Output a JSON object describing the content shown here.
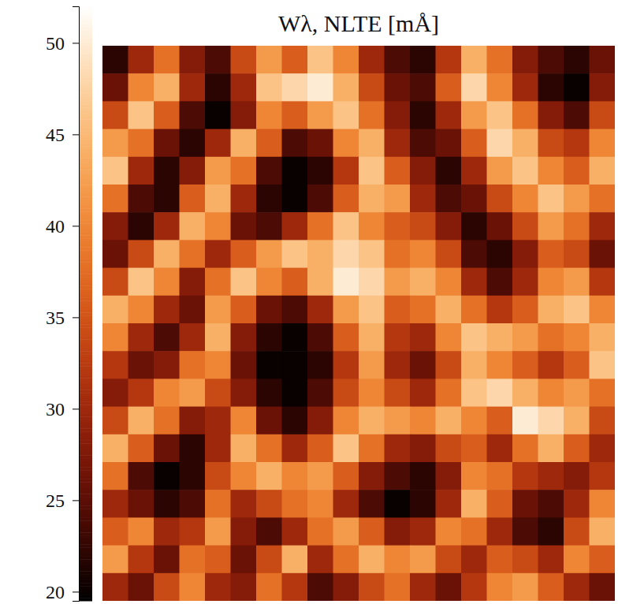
{
  "chart_data": {
    "type": "heatmap",
    "title": "Wλ, NLTE [mÅ]",
    "tick_labels": false,
    "cells": [
      [
        22,
        30,
        38,
        28,
        24,
        34,
        42,
        36,
        46,
        40,
        30,
        24,
        22,
        32,
        44,
        38,
        28,
        24,
        22,
        26
      ],
      [
        26,
        40,
        44,
        30,
        22,
        30,
        46,
        48,
        50,
        44,
        34,
        26,
        24,
        36,
        48,
        40,
        30,
        22,
        20,
        28
      ],
      [
        34,
        46,
        36,
        24,
        20,
        28,
        40,
        36,
        42,
        46,
        38,
        28,
        22,
        30,
        42,
        46,
        38,
        28,
        24,
        34
      ],
      [
        42,
        38,
        26,
        22,
        30,
        44,
        36,
        24,
        26,
        40,
        44,
        30,
        24,
        26,
        36,
        48,
        44,
        34,
        32,
        40
      ],
      [
        46,
        30,
        22,
        28,
        42,
        38,
        24,
        20,
        22,
        32,
        46,
        36,
        28,
        22,
        30,
        42,
        46,
        40,
        36,
        44
      ],
      [
        38,
        24,
        22,
        36,
        44,
        30,
        22,
        20,
        24,
        36,
        44,
        42,
        30,
        24,
        26,
        34,
        40,
        46,
        42,
        38
      ],
      [
        28,
        22,
        30,
        44,
        40,
        26,
        24,
        30,
        38,
        46,
        40,
        36,
        34,
        28,
        22,
        26,
        34,
        42,
        38,
        30
      ],
      [
        26,
        34,
        44,
        38,
        30,
        36,
        42,
        46,
        44,
        48,
        46,
        38,
        40,
        34,
        24,
        22,
        28,
        36,
        34,
        26
      ],
      [
        34,
        46,
        40,
        28,
        38,
        46,
        40,
        36,
        44,
        50,
        48,
        42,
        44,
        40,
        30,
        24,
        30,
        40,
        42,
        32
      ],
      [
        44,
        40,
        30,
        26,
        42,
        36,
        26,
        24,
        30,
        42,
        46,
        36,
        38,
        44,
        38,
        32,
        36,
        44,
        46,
        40
      ],
      [
        40,
        30,
        24,
        30,
        44,
        28,
        22,
        20,
        24,
        36,
        44,
        32,
        30,
        40,
        46,
        44,
        42,
        38,
        40,
        44
      ],
      [
        32,
        26,
        28,
        38,
        40,
        26,
        20,
        20,
        22,
        32,
        42,
        30,
        26,
        34,
        44,
        40,
        36,
        32,
        36,
        46
      ],
      [
        28,
        32,
        40,
        42,
        34,
        28,
        22,
        20,
        24,
        34,
        40,
        34,
        30,
        38,
        46,
        48,
        44,
        40,
        42,
        38
      ],
      [
        34,
        44,
        38,
        28,
        30,
        40,
        26,
        22,
        28,
        40,
        44,
        42,
        40,
        44,
        40,
        36,
        50,
        48,
        44,
        34
      ],
      [
        44,
        36,
        26,
        22,
        30,
        44,
        38,
        30,
        36,
        46,
        38,
        30,
        28,
        34,
        36,
        30,
        38,
        44,
        36,
        30
      ],
      [
        38,
        24,
        20,
        22,
        34,
        40,
        44,
        40,
        42,
        36,
        28,
        24,
        22,
        28,
        40,
        38,
        32,
        30,
        28,
        32
      ],
      [
        30,
        26,
        22,
        24,
        38,
        30,
        34,
        38,
        40,
        30,
        24,
        20,
        22,
        30,
        44,
        36,
        26,
        24,
        30,
        40
      ],
      [
        36,
        40,
        30,
        32,
        42,
        28,
        24,
        30,
        38,
        42,
        36,
        28,
        30,
        40,
        38,
        30,
        24,
        22,
        34,
        44
      ],
      [
        42,
        32,
        26,
        38,
        36,
        26,
        34,
        44,
        30,
        38,
        44,
        40,
        42,
        34,
        30,
        36,
        34,
        30,
        40,
        36
      ],
      [
        30,
        26,
        34,
        40,
        30,
        28,
        38,
        32,
        24,
        28,
        34,
        38,
        30,
        26,
        32,
        40,
        42,
        36,
        30,
        26
      ]
    ],
    "colorbar_range": [
      19.5,
      52
    ],
    "colorbar_ticks": [
      20,
      25,
      30,
      35,
      40,
      45,
      50
    ]
  }
}
